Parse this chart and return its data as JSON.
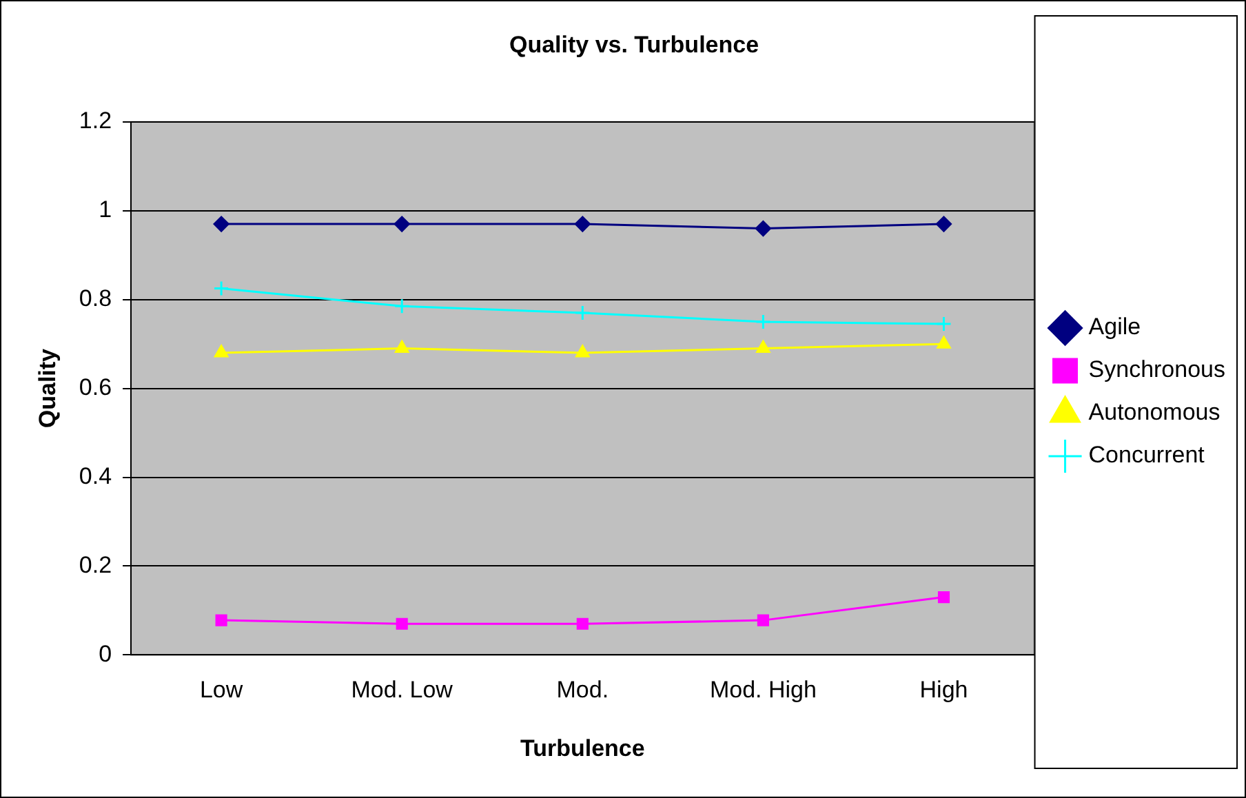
{
  "chart_data": {
    "type": "line",
    "title": "Quality vs. Turbulence",
    "xlabel": "Turbulence",
    "ylabel": "Quality",
    "categories": [
      "Low",
      "Mod. Low",
      "Mod.",
      "Mod. High",
      "High"
    ],
    "series": [
      {
        "name": "Agile",
        "color": "#000080",
        "marker": "diamond",
        "values": [
          0.97,
          0.97,
          0.97,
          0.96,
          0.97
        ]
      },
      {
        "name": "Synchronous",
        "color": "#ff00ff",
        "marker": "square",
        "values": [
          0.078,
          0.07,
          0.07,
          0.078,
          0.13
        ]
      },
      {
        "name": "Autonomous",
        "color": "#ffff00",
        "marker": "triangle",
        "values": [
          0.68,
          0.69,
          0.68,
          0.69,
          0.7
        ]
      },
      {
        "name": "Concurrent",
        "color": "#00ffff",
        "marker": "cross",
        "values": [
          0.825,
          0.785,
          0.77,
          0.75,
          0.745
        ]
      }
    ],
    "ylim": [
      0,
      1.2
    ],
    "yticks": [
      0,
      0.2,
      0.4,
      0.6,
      0.8,
      1,
      1.2
    ],
    "grid": "y",
    "legend": "right",
    "line_style": "solid"
  }
}
